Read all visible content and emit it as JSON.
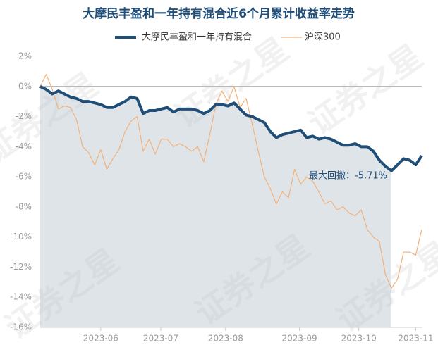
{
  "chart_data": {
    "type": "line",
    "title": "大摩民丰盈和一年持有混合近6个月累计收益率走势",
    "watermark": "证券之星",
    "annotation": "最大回撤：-5.71%",
    "xlim": [
      0,
      63
    ],
    "xticks": [
      {
        "value": 10,
        "label": "2023-06"
      },
      {
        "value": 19.9,
        "label": "2023-07"
      },
      {
        "value": 30.6,
        "label": "2023-08"
      },
      {
        "value": 42.8,
        "label": "2023-09"
      },
      {
        "value": 52.6,
        "label": "2023-10"
      },
      {
        "value": 62,
        "label": "2023-11"
      }
    ],
    "ylim": [
      -16,
      2
    ],
    "yticks": [
      {
        "value": 2,
        "label": "2%"
      },
      {
        "value": 0,
        "label": "0%"
      },
      {
        "value": -2,
        "label": "-2%"
      },
      {
        "value": -4,
        "label": "-4%"
      },
      {
        "value": -6,
        "label": "-6%"
      },
      {
        "value": -8,
        "label": "-8%"
      },
      {
        "value": -10,
        "label": "-10%"
      },
      {
        "value": -12,
        "label": "-12%"
      },
      {
        "value": -14,
        "label": "-14%"
      },
      {
        "value": -16,
        "label": "-16%"
      }
    ],
    "shaded_range": [
      0,
      58
    ],
    "series": [
      {
        "name": "大摩民丰盈和一年持有混合",
        "color": "#1f4e79",
        "values": [
          0,
          -0.2,
          -0.5,
          -0.3,
          -0.5,
          -0.7,
          -0.8,
          -1.0,
          -1.0,
          -1.1,
          -1.2,
          -1.4,
          -1.4,
          -1.2,
          -1.0,
          -0.7,
          -0.8,
          -1.8,
          -1.6,
          -1.6,
          -1.5,
          -1.4,
          -1.7,
          -1.5,
          -1.5,
          -1.5,
          -1.6,
          -1.8,
          -1.6,
          -1.2,
          -1.2,
          -1.3,
          -1.1,
          -1.5,
          -1.9,
          -2.0,
          -2.2,
          -2.4,
          -3.0,
          -3.4,
          -3.2,
          -3.1,
          -3.0,
          -2.9,
          -3.4,
          -3.3,
          -3.5,
          -3.4,
          -3.5,
          -3.7,
          -3.9,
          -3.9,
          -3.8,
          -4.0,
          -4.0,
          -4.3,
          -4.9,
          -5.3,
          -5.6,
          -5.2,
          -4.8,
          -4.9,
          -5.2,
          -4.6
        ]
      },
      {
        "name": "沪深300",
        "color": "#f2b27c",
        "values": [
          0,
          0.8,
          -0.2,
          -1.5,
          -1.3,
          -1.4,
          -2.2,
          -4.0,
          -4.4,
          -5.2,
          -4.2,
          -5.5,
          -4.8,
          -4.2,
          -3.0,
          -2.3,
          -2.0,
          -4.3,
          -3.5,
          -4.5,
          -3.5,
          -3.5,
          -4.0,
          -3.8,
          -4.0,
          -4.3,
          -4.0,
          -5.0,
          -3.2,
          -1.2,
          -0.3,
          -1.0,
          0.0,
          -1.4,
          -0.8,
          -2.5,
          -4.3,
          -6.0,
          -6.8,
          -7.8,
          -7.0,
          -7.4,
          -5.5,
          -6.5,
          -6.0,
          -6.3,
          -7.0,
          -7.8,
          -7.6,
          -8.2,
          -8.0,
          -8.4,
          -8.6,
          -8.2,
          -9.5,
          -10.0,
          -10.3,
          -12.5,
          -13.4,
          -12.8,
          -11.0,
          -11.0,
          -11.2,
          -9.5
        ]
      }
    ]
  }
}
